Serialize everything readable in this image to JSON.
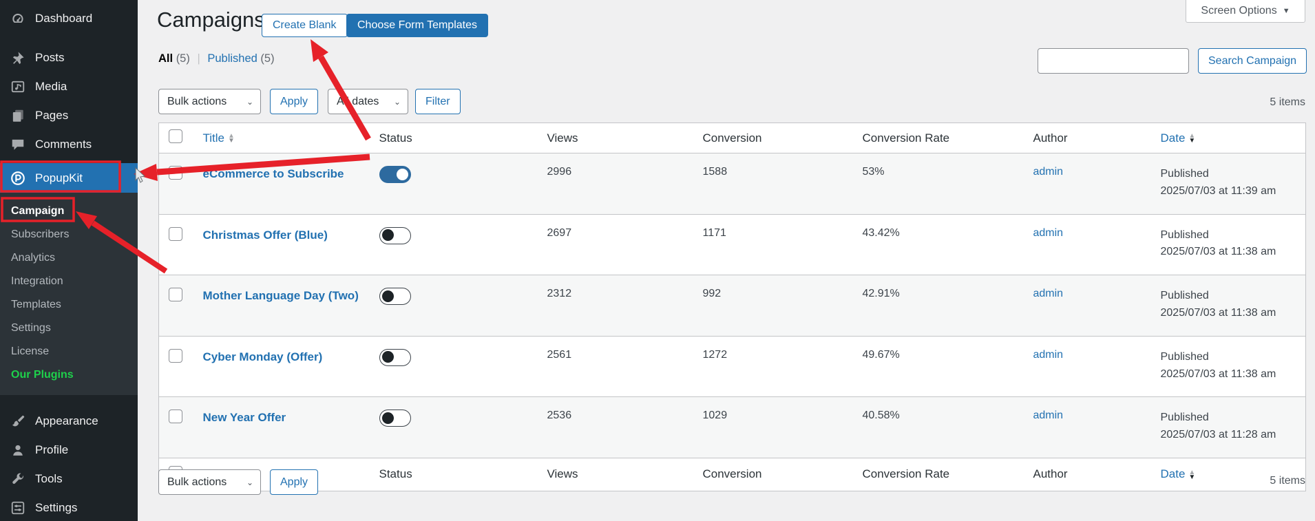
{
  "colors": {
    "accent": "#2271b1",
    "annotation_red": "#e62129",
    "toggle_on": "#2d6a9f",
    "our_plugins_green": "#1ed14b",
    "sidebar_bg": "#1d2327"
  },
  "sidebar": {
    "top_items": [
      {
        "label": "Dashboard",
        "icon": "dashboard-icon"
      },
      {
        "label": "Posts",
        "icon": "pushpin-icon"
      },
      {
        "label": "Media",
        "icon": "media-icon"
      },
      {
        "label": "Pages",
        "icon": "pages-icon"
      },
      {
        "label": "Comments",
        "icon": "comment-icon"
      }
    ],
    "plugin_item": {
      "label": "PopupKit",
      "icon": "popupkit-icon"
    },
    "submenu": [
      {
        "label": "Campaign",
        "state": "current"
      },
      {
        "label": "Subscribers",
        "state": ""
      },
      {
        "label": "Analytics",
        "state": ""
      },
      {
        "label": "Integration",
        "state": ""
      },
      {
        "label": "Templates",
        "state": ""
      },
      {
        "label": "Settings",
        "state": ""
      },
      {
        "label": "License",
        "state": ""
      },
      {
        "label": "Our Plugins",
        "state": "highlight"
      }
    ],
    "bottom_items": [
      {
        "label": "Appearance",
        "icon": "brush-icon"
      },
      {
        "label": "Profile",
        "icon": "user-icon"
      },
      {
        "label": "Tools",
        "icon": "wrench-icon"
      },
      {
        "label": "Settings",
        "icon": "sliders-icon"
      }
    ]
  },
  "header": {
    "title": "Campaigns",
    "create_blank_label": "Create Blank",
    "choose_templates_label": "Choose Form Templates",
    "screen_options_label": "Screen Options"
  },
  "filters": {
    "all_label": "All",
    "all_count": "(5)",
    "published_label": "Published",
    "published_count": "(5)",
    "bulk_actions_label": "Bulk actions",
    "apply_label": "Apply",
    "all_dates_label": "All dates",
    "filter_label": "Filter",
    "search_placeholder": "",
    "search_button_label": "Search Campaign"
  },
  "table": {
    "columns": {
      "title": "Title",
      "status": "Status",
      "views": "Views",
      "conversion": "Conversion",
      "conversion_rate": "Conversion Rate",
      "author": "Author",
      "date": "Date"
    },
    "items_count": "5 items",
    "rows": [
      {
        "title": "eCommerce to Subscribe",
        "status_on": true,
        "views": "2996",
        "conversion": "1588",
        "rate": "53%",
        "author": "admin",
        "date_line1": "Published",
        "date_line2": "2025/07/03 at 11:39 am"
      },
      {
        "title": "Christmas Offer (Blue)",
        "status_on": false,
        "views": "2697",
        "conversion": "1171",
        "rate": "43.42%",
        "author": "admin",
        "date_line1": "Published",
        "date_line2": "2025/07/03 at 11:38 am"
      },
      {
        "title": "Mother Language Day (Two)",
        "status_on": false,
        "views": "2312",
        "conversion": "992",
        "rate": "42.91%",
        "author": "admin",
        "date_line1": "Published",
        "date_line2": "2025/07/03 at 11:38 am"
      },
      {
        "title": "Cyber Monday (Offer)",
        "status_on": false,
        "views": "2561",
        "conversion": "1272",
        "rate": "49.67%",
        "author": "admin",
        "date_line1": "Published",
        "date_line2": "2025/07/03 at 11:38 am"
      },
      {
        "title": "New Year Offer",
        "status_on": false,
        "views": "2536",
        "conversion": "1029",
        "rate": "40.58%",
        "author": "admin",
        "date_line1": "Published",
        "date_line2": "2025/07/03 at 11:28 am"
      }
    ]
  }
}
